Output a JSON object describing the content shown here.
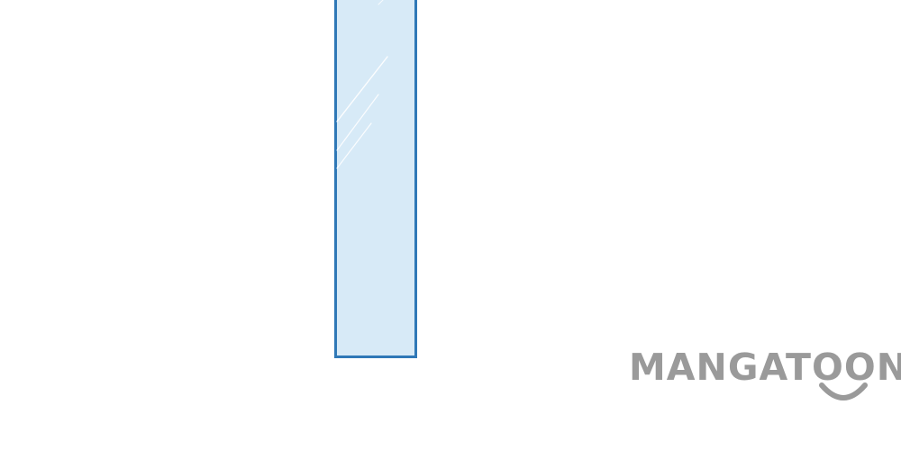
{
  "scene": {
    "background_color": "#ffffff",
    "panel": {
      "fill_color": "#d7eaf7",
      "border_color": "#2f78b7",
      "glare_color": "#ffffff"
    },
    "watermark": {
      "text": "MANGATOON",
      "color": "#9a9a9a",
      "smile_icon": "smile-icon"
    }
  }
}
